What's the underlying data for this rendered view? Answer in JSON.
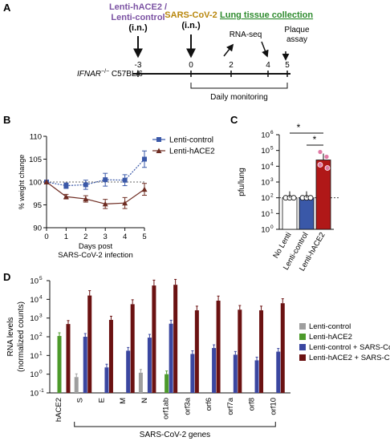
{
  "panel_labels": {
    "a": "A",
    "b": "B",
    "c": "C",
    "d": "D"
  },
  "timeline": {
    "treatment_1": "Lenti-hACE2 /",
    "treatment_1b": "Lenti-control",
    "treatment_1_route": "(i.n.)",
    "treatment_2": "SARS-CoV-2",
    "treatment_2_route": "(i.n.)",
    "collection": "Lung tissue collection",
    "rnaseq": "RNA-seq",
    "plaque_1": "Plaque",
    "plaque_2": "assay",
    "mouse_gene": "IFNAR",
    "mouse_sup": "−/−",
    "mouse_strain": " C57BL/6",
    "days": [
      "-3",
      "0",
      "2",
      "4",
      "5"
    ],
    "monitoring": "Daily monitoring",
    "colors": {
      "treatment_1": "#7b52a3",
      "treatment_2": "#b8860b",
      "collection": "#2e8b2e"
    }
  },
  "chart_data": [
    {
      "id": "B",
      "type": "line",
      "x": [
        0,
        1,
        2,
        3,
        4,
        5
      ],
      "xticks": [
        "0",
        "1",
        "2",
        "3",
        "4",
        "5"
      ],
      "yticks": [
        "90",
        "95",
        "100",
        "105",
        "110"
      ],
      "xlabel_1": "Days post",
      "xlabel_2": "SARS-CoV-2 infection",
      "ylabel": "% weight change",
      "ylim": [
        90,
        110
      ],
      "series": [
        {
          "name": "Lenti-control",
          "values": [
            100,
            99.2,
            99.4,
            100.5,
            100.4,
            105
          ],
          "err": [
            0,
            0.6,
            1.0,
            1.4,
            1.2,
            1.8
          ],
          "color": "#3a58a8",
          "marker": "square"
        },
        {
          "name": "Lenti-hACE2",
          "values": [
            100,
            96.8,
            96.3,
            95.2,
            95.4,
            98.4
          ],
          "err": [
            0,
            0.5,
            0.7,
            1.0,
            1.2,
            1.3
          ],
          "color": "#6e2c22",
          "marker": "triangle"
        }
      ]
    },
    {
      "id": "C",
      "type": "bar",
      "categories": [
        "No Lenti",
        "Lenti-control",
        "Lenti-hACE2"
      ],
      "values": [
        100,
        100,
        25000
      ],
      "colors": [
        "#ffffff",
        "#3a58a8",
        "#b01818"
      ],
      "ylabel": "pfu/lung",
      "yticks": [
        "10",
        "10",
        "10",
        "10",
        "10",
        "10",
        "10"
      ],
      "ytick_exponents": [
        "0",
        "1",
        "2",
        "3",
        "4",
        "5",
        "6"
      ],
      "ylim_log10": [
        0,
        6
      ],
      "significance": [
        "*",
        "*"
      ]
    },
    {
      "id": "D",
      "type": "bar",
      "categories": [
        "hACE2",
        "S",
        "E",
        "M",
        "N",
        "orf1ab",
        "orf3a",
        "orf6",
        "orf7a",
        "orf8",
        "orf10"
      ],
      "ylabel_1": "RNA levels",
      "ylabel_2": "(normalized counts)",
      "yticks": [
        "10",
        "10",
        "10",
        "10",
        "10",
        "10",
        "10",
        "10"
      ],
      "ytick_exponents": [
        "-1",
        "0",
        "1",
        "2",
        "3",
        "4",
        "5",
        "5"
      ],
      "ylim_log10": [
        -1,
        5
      ],
      "group_label": "SARS-CoV-2 genes",
      "series": [
        {
          "name": "Lenti-control",
          "color": "#9e9e9e",
          "values": [
            null,
            0.7,
            null,
            null,
            1.2,
            null,
            null,
            null,
            null,
            null,
            null
          ]
        },
        {
          "name": "Lenti-hACE2",
          "color": "#4c9a2a",
          "values": [
            110,
            null,
            null,
            null,
            null,
            1.0,
            null,
            null,
            null,
            null,
            null
          ]
        },
        {
          "name": "Lenti-control + SARS-CoV-2",
          "color": "#3a46a0",
          "values": [
            null,
            100,
            2.3,
            18,
            90,
            500,
            12,
            25,
            11,
            5.5,
            16
          ]
        },
        {
          "name": "Lenti-hACE2 + SARS-CoV-2",
          "color": "#6b1212",
          "values": [
            480,
            16000,
            800,
            5500,
            55000,
            60000,
            2600,
            8500,
            2800,
            2600,
            6200
          ]
        }
      ],
      "extra_bar_orf1ab_control": 1.9
    }
  ]
}
